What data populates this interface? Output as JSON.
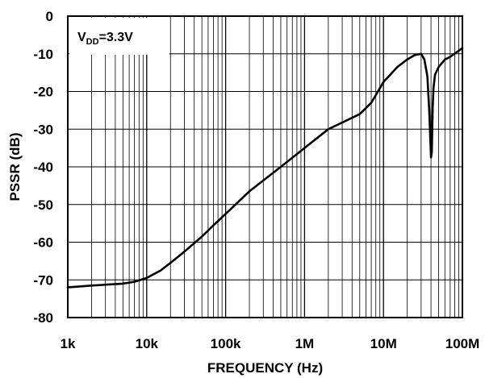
{
  "chart_data": {
    "type": "line",
    "title": "",
    "xlabel": "FREQUENCY (Hz)",
    "ylabel": "PSSR (dB)",
    "xscale": "log",
    "xlim": [
      1000,
      100000000
    ],
    "ylim": [
      -80,
      0
    ],
    "grid": true,
    "x_tick_labels": [
      "1k",
      "10k",
      "100k",
      "1M",
      "10M",
      "100M"
    ],
    "y_tick_labels": [
      "0",
      "-10",
      "-20",
      "-30",
      "-40",
      "-50",
      "-60",
      "-70",
      "-80"
    ],
    "annotation": {
      "main": "V",
      "sub": "DD",
      "suffix": "=3.3V"
    },
    "colors": {
      "line": "#000000",
      "grid": "#000000",
      "background": "#ffffff"
    },
    "series": [
      {
        "x": [
          1000,
          2000,
          5000,
          7000,
          10000,
          15000,
          20000,
          30000,
          50000,
          70000,
          100000,
          200000,
          500000,
          1000000,
          2000000,
          5000000,
          7000000,
          10000000,
          15000000,
          20000000,
          25000000,
          30000000,
          33000000,
          36000000,
          38000000,
          40000000,
          41000000,
          42000000,
          43000000,
          45000000,
          50000000,
          60000000,
          70000000,
          100000000
        ],
        "y": [
          -72,
          -71.5,
          -71,
          -70.5,
          -69.5,
          -67.5,
          -65.5,
          -62.5,
          -58.5,
          -55.5,
          -52.5,
          -46.5,
          -40,
          -35,
          -30,
          -26,
          -23,
          -17.5,
          -13.5,
          -11.5,
          -10.3,
          -10,
          -11.5,
          -16,
          -25,
          -37.5,
          -36,
          -24,
          -19,
          -15.5,
          -13.5,
          -11.5,
          -10.8,
          -8.5
        ]
      }
    ]
  }
}
